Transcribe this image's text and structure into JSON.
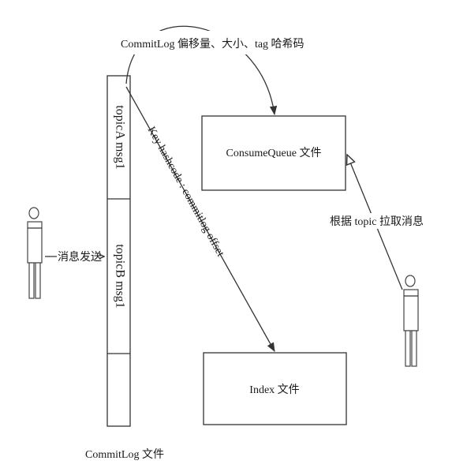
{
  "commitlog": {
    "segment1": "topicA msg1",
    "segment2": "topicB msg1",
    "caption": "CommitLog 文件"
  },
  "consumequeue": {
    "label": "ConsumeQueue 文件"
  },
  "index": {
    "label": "Index 文件"
  },
  "edges": {
    "to_consumequeue": "CommitLog 偏移量、大小、tag 哈希码",
    "to_index": "Key hashcode : commitlog offset",
    "producer_send": "消息发送",
    "consumer_pull": "根据 topic 拉取消息"
  }
}
